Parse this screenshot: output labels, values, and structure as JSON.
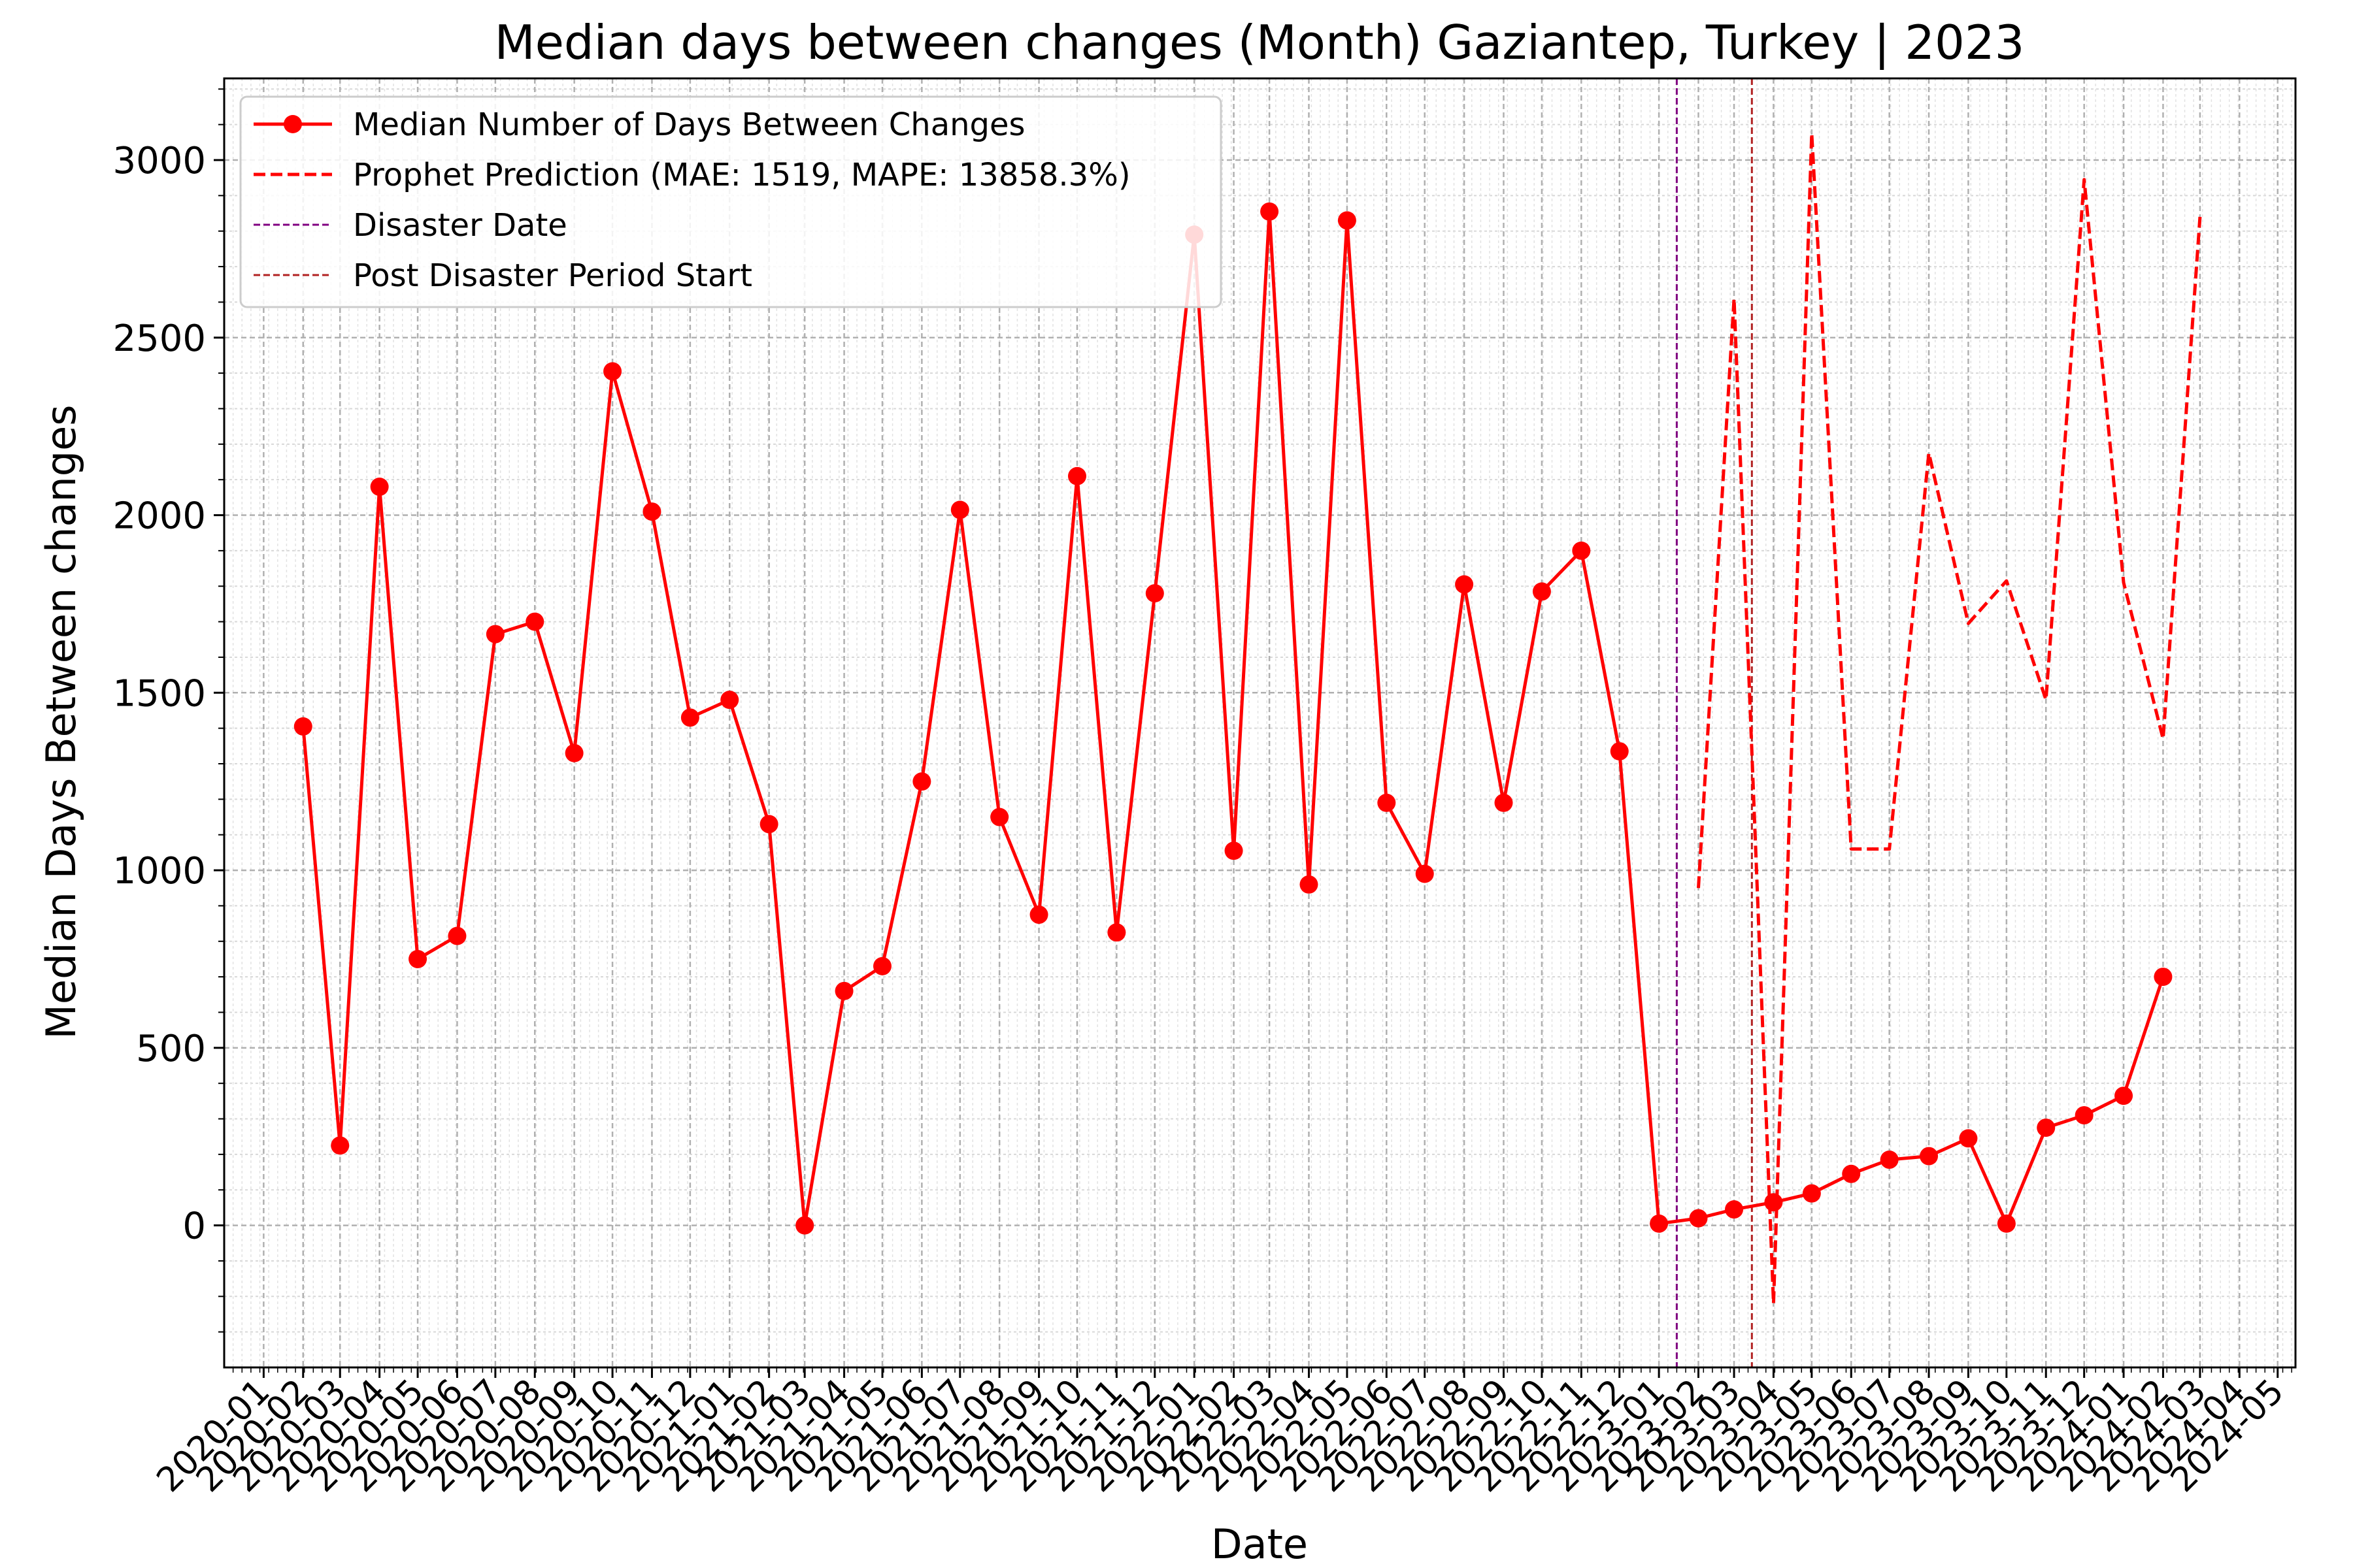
{
  "chart_data": {
    "type": "line",
    "title": "Median days between changes (Month) Gaziantep, Turkey | 2023",
    "xlabel": "Date",
    "ylabel": "Median Days Between changes",
    "ylim": [
      -400,
      3230
    ],
    "xlim": [
      "2019-12-01",
      "2024-05-15"
    ],
    "y_ticks": [
      0,
      500,
      1000,
      1500,
      2000,
      2500,
      3000
    ],
    "x_tick_labels": [
      "2020-01",
      "2020-02",
      "2020-03",
      "2020-04",
      "2020-05",
      "2020-06",
      "2020-07",
      "2020-08",
      "2020-09",
      "2020-10",
      "2020-11",
      "2020-12",
      "2021-01",
      "2021-02",
      "2021-03",
      "2021-04",
      "2021-05",
      "2021-06",
      "2021-07",
      "2021-08",
      "2021-09",
      "2021-10",
      "2021-11",
      "2021-12",
      "2022-01",
      "2022-02",
      "2022-03",
      "2022-04",
      "2022-05",
      "2022-06",
      "2022-07",
      "2022-08",
      "2022-09",
      "2022-10",
      "2022-11",
      "2022-12",
      "2023-01",
      "2023-02",
      "2023-03",
      "2023-04",
      "2023-05",
      "2023-06",
      "2023-07",
      "2023-08",
      "2023-09",
      "2023-10",
      "2023-11",
      "2023-12",
      "2024-01",
      "2024-02",
      "2024-03",
      "2024-04",
      "2024-05"
    ],
    "grid": true,
    "legend_position": "top-left",
    "series": [
      {
        "name": "Median Number of Days Between Changes",
        "style": "solid-with-markers",
        "color": "#ff0000",
        "x": [
          "2020-02",
          "2020-03",
          "2020-04",
          "2020-05",
          "2020-06",
          "2020-07",
          "2020-08",
          "2020-09",
          "2020-10",
          "2020-11",
          "2020-12",
          "2021-01",
          "2021-02",
          "2021-03",
          "2021-04",
          "2021-05",
          "2021-06",
          "2021-07",
          "2021-08",
          "2021-09",
          "2021-10",
          "2021-11",
          "2021-12",
          "2022-01",
          "2022-02",
          "2022-03",
          "2022-04",
          "2022-05",
          "2022-06",
          "2022-07",
          "2022-08",
          "2022-09",
          "2022-10",
          "2022-11",
          "2022-12",
          "2023-01",
          "2023-02",
          "2023-03",
          "2023-04",
          "2023-05",
          "2023-06",
          "2023-07",
          "2023-08",
          "2023-09",
          "2023-10",
          "2023-11",
          "2023-12",
          "2024-01",
          "2024-02"
        ],
        "values": [
          1405,
          225,
          2080,
          750,
          815,
          1665,
          1700,
          1330,
          2405,
          2010,
          1430,
          1480,
          1130,
          0,
          660,
          730,
          1250,
          2015,
          1150,
          875,
          2110,
          825,
          1780,
          2790,
          1055,
          2855,
          960,
          2830,
          1190,
          990,
          1805,
          1190,
          1785,
          1900,
          1335,
          5,
          20,
          45,
          65,
          90,
          145,
          185,
          195,
          245,
          5,
          275,
          310,
          365,
          700
        ]
      },
      {
        "name": "Prophet Prediction (MAE: 1519, MAPE: 13858.3%)",
        "style": "dashed",
        "color": "#ff0000",
        "x": [
          "2023-02",
          "2023-03",
          "2023-04",
          "2023-05",
          "2023-06",
          "2023-07",
          "2023-08",
          "2023-09",
          "2023-10",
          "2023-11",
          "2023-12",
          "2024-01",
          "2024-02",
          "2024-03"
        ],
        "values": [
          950,
          2610,
          -220,
          3075,
          1060,
          1060,
          2175,
          1695,
          1815,
          1480,
          2945,
          1810,
          1370,
          2840
        ]
      }
    ],
    "vlines": [
      {
        "name": "Disaster Date",
        "x": "2023-01-15",
        "color": "#800080",
        "style": "dashed"
      },
      {
        "name": "Post Disaster Period Start",
        "x": "2023-03-15",
        "color": "#b22222",
        "style": "dashed"
      }
    ]
  }
}
